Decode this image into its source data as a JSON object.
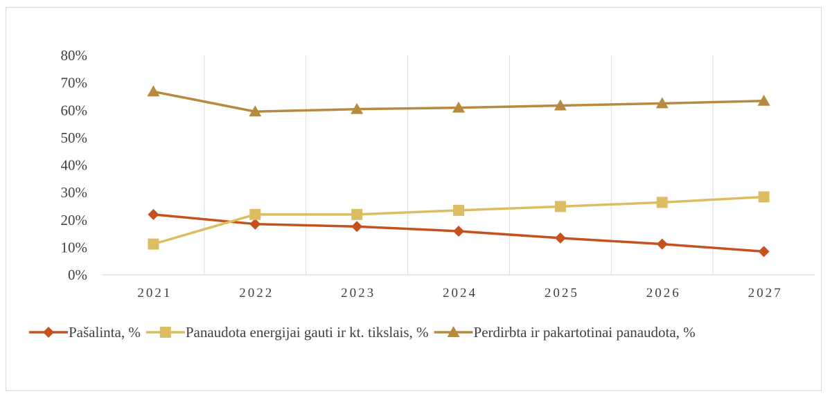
{
  "chart_data": {
    "type": "line",
    "title": "",
    "xlabel": "",
    "ylabel": "",
    "categories": [
      "2021",
      "2022",
      "2023",
      "2024",
      "2025",
      "2026",
      "2027"
    ],
    "ylim": [
      0,
      0.8
    ],
    "yticks": [
      0,
      0.1,
      0.2,
      0.3,
      0.4,
      0.5,
      0.6,
      0.7,
      0.8
    ],
    "ytick_labels": [
      "0%",
      "10%",
      "20%",
      "30%",
      "40%",
      "50%",
      "60%",
      "70%",
      "80%"
    ],
    "grid": "vertical",
    "legend_position": "bottom",
    "series": [
      {
        "name": "Pašalinta, %",
        "values": [
          0.22,
          0.185,
          0.176,
          0.159,
          0.134,
          0.112,
          0.085
        ],
        "color": "#c5511e",
        "marker": "diamond"
      },
      {
        "name": "Panaudota energijai gauti ir kt. tikslais, %",
        "values": [
          0.112,
          0.22,
          0.22,
          0.235,
          0.249,
          0.264,
          0.284
        ],
        "color": "#dcbd62",
        "marker": "square"
      },
      {
        "name": "Perdirbta ir pakartotinai panaudota, %",
        "values": [
          0.668,
          0.595,
          0.604,
          0.609,
          0.617,
          0.625,
          0.634
        ],
        "color": "#b88a3f",
        "marker": "triangle"
      }
    ]
  }
}
